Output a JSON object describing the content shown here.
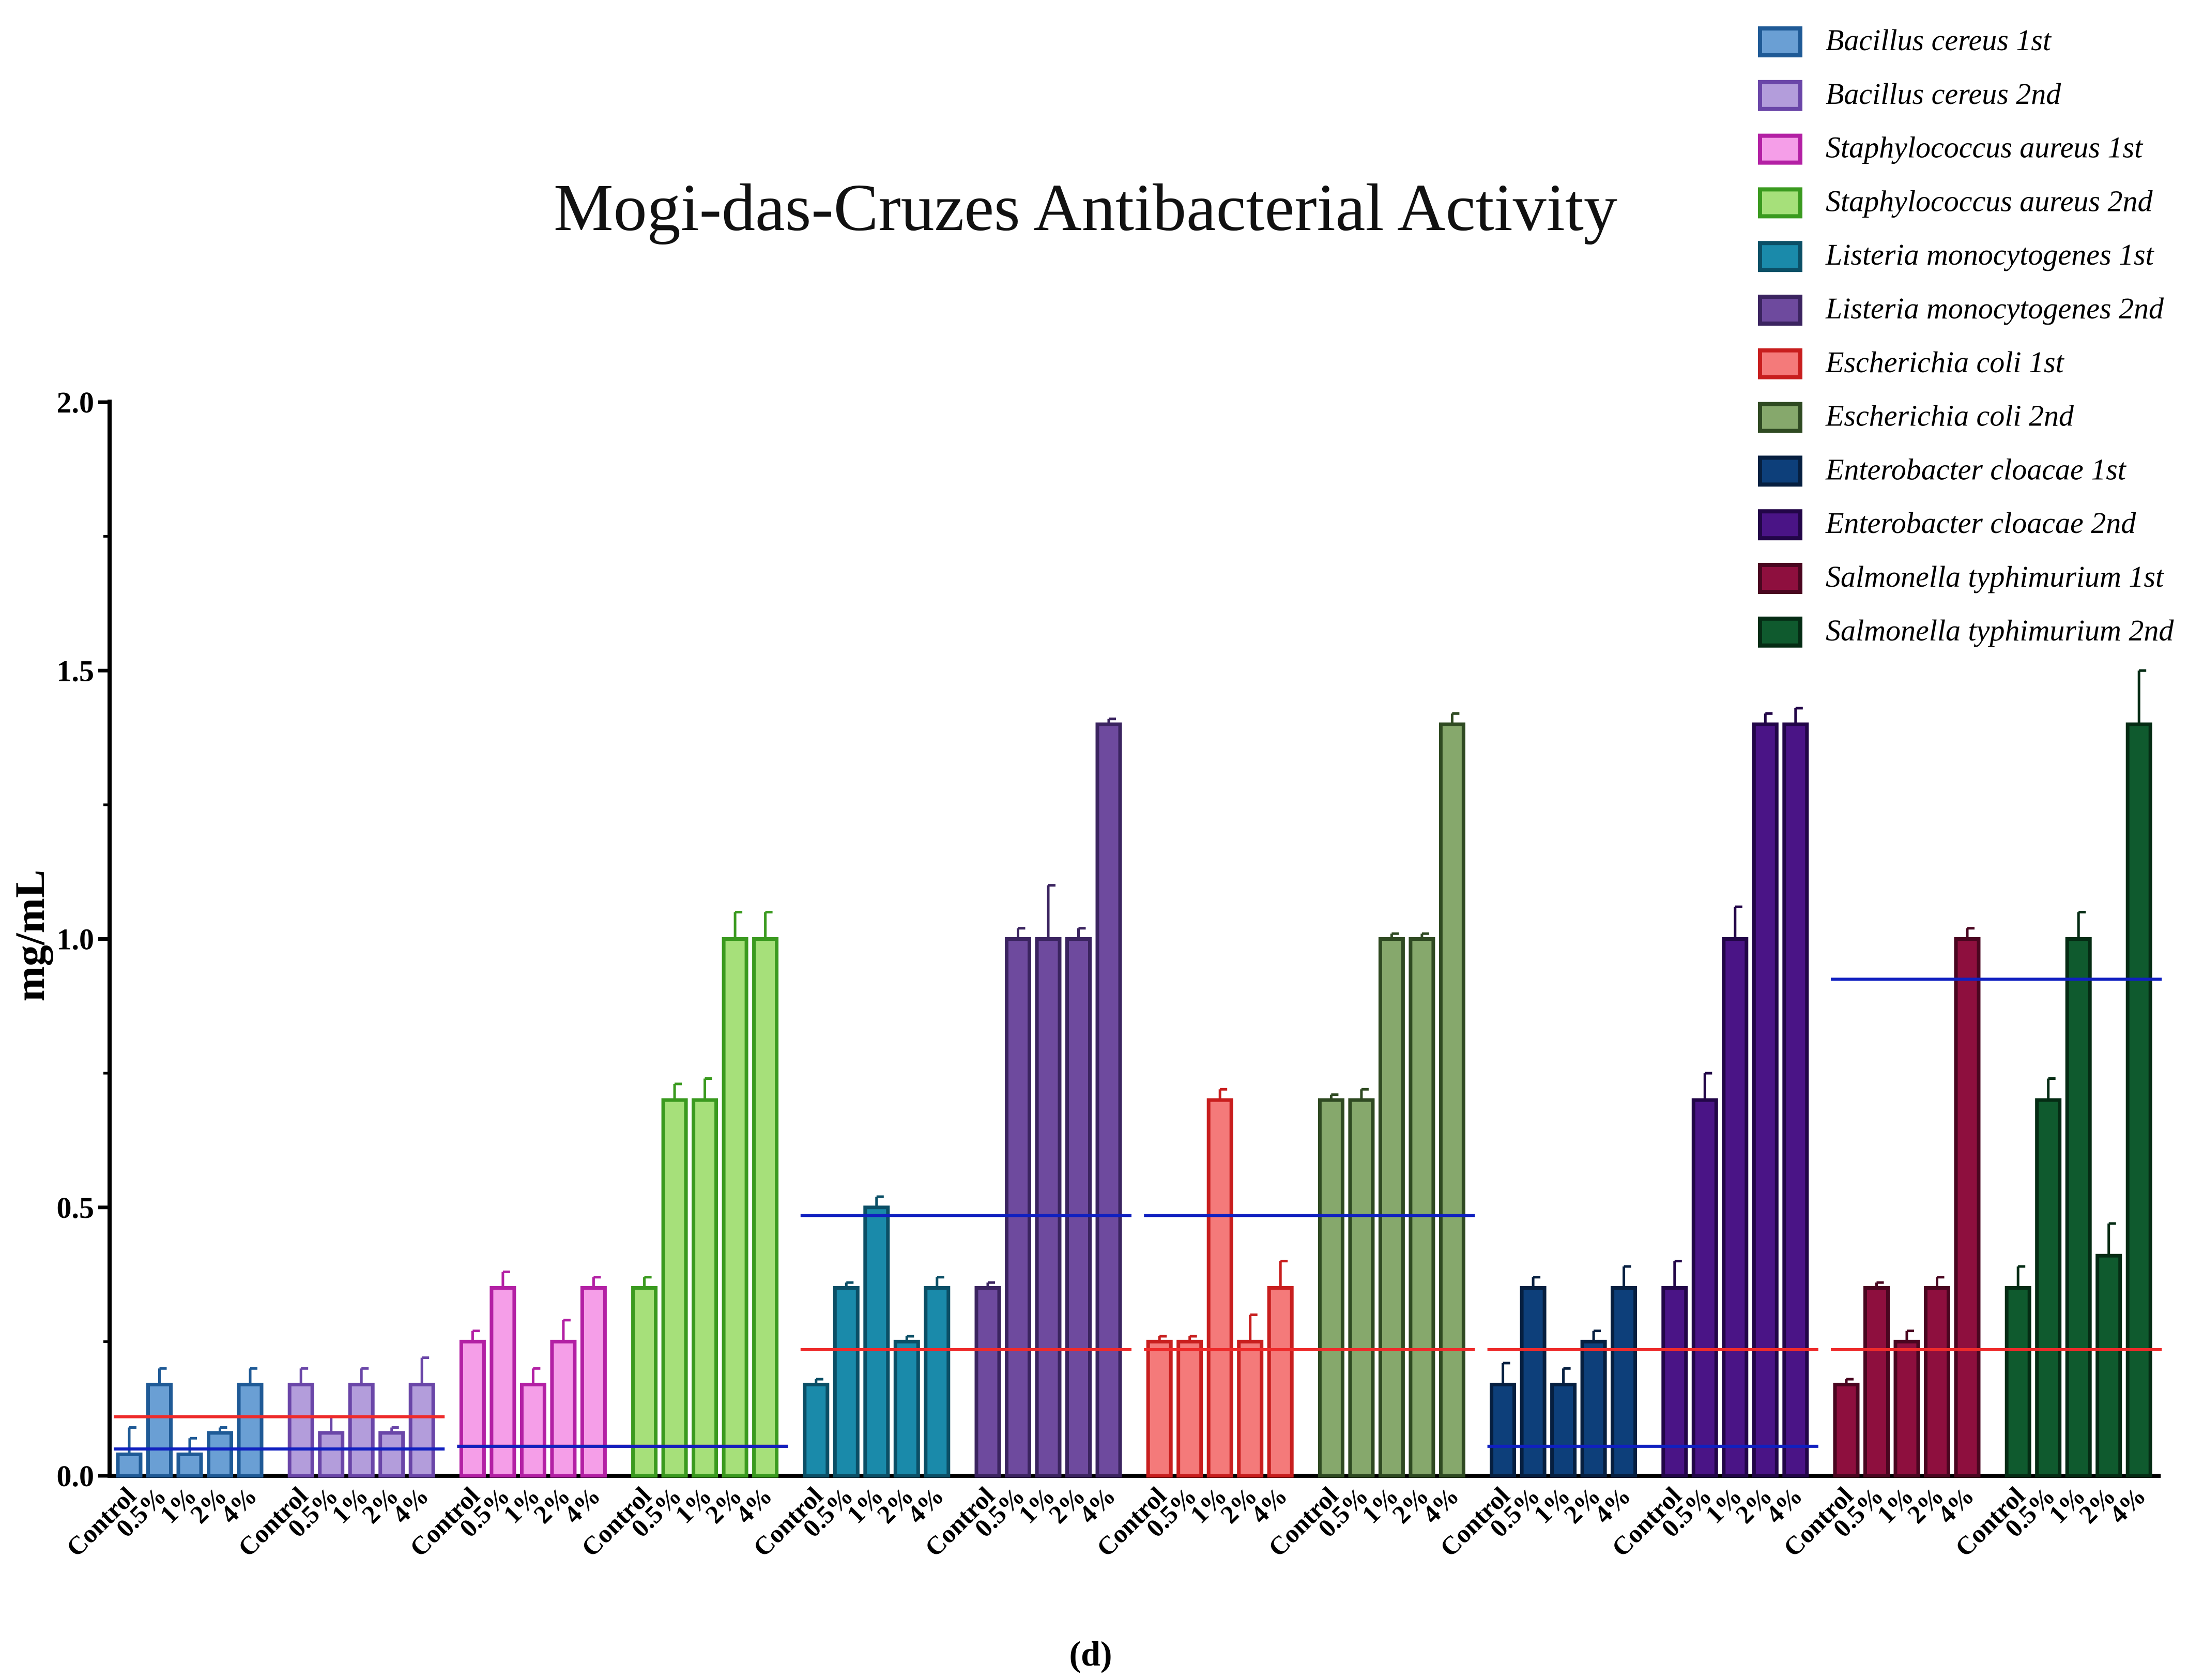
{
  "chart_data": {
    "type": "bar",
    "title": "Mogi-das-Cruzes Antibacterial Activity",
    "xlabel": "",
    "ylabel": "mg/mL",
    "caption": "(d)",
    "ylim": [
      0,
      2.0
    ],
    "yticks": [
      {
        "value": 0,
        "label": "0.0"
      },
      {
        "value": 0.5,
        "label": "0.5"
      },
      {
        "value": 1.0,
        "label": "1.0"
      },
      {
        "value": 1.5,
        "label": "1.5"
      },
      {
        "value": 2.0,
        "label": "2.0"
      }
    ],
    "grid": false,
    "legend_position": "top-right",
    "categories": [
      "Control",
      "0.5%",
      "1%",
      "2%",
      "4%"
    ],
    "series": [
      {
        "name": "Bacillus cereus 1st",
        "color": "#6a9fd4",
        "edge": "#1f5a96",
        "values": [
          0.04,
          0.17,
          0.04,
          0.08,
          0.17
        ],
        "errors": [
          0.05,
          0.03,
          0.03,
          0.01,
          0.03
        ]
      },
      {
        "name": "Bacillus cereus 2nd",
        "color": "#b39ddb",
        "edge": "#6a46a8",
        "values": [
          0.17,
          0.08,
          0.17,
          0.08,
          0.17
        ],
        "errors": [
          0.03,
          0.03,
          0.03,
          0.01,
          0.05
        ]
      },
      {
        "name": "Staphylococcus aureus 1st",
        "color": "#f59ee8",
        "edge": "#b320a4",
        "values": [
          0.25,
          0.35,
          0.17,
          0.25,
          0.35
        ],
        "errors": [
          0.02,
          0.03,
          0.03,
          0.04,
          0.02
        ]
      },
      {
        "name": "Staphylococcus aureus 2nd",
        "color": "#a6e07a",
        "edge": "#3a9a1f",
        "values": [
          0.35,
          0.7,
          0.7,
          1.0,
          1.0
        ],
        "errors": [
          0.02,
          0.03,
          0.04,
          0.05,
          0.05
        ]
      },
      {
        "name": "Listeria monocytogenes 1st",
        "color": "#1a8aaa",
        "edge": "#0b4f66",
        "values": [
          0.17,
          0.35,
          0.5,
          0.25,
          0.35
        ],
        "errors": [
          0.01,
          0.01,
          0.02,
          0.01,
          0.02
        ]
      },
      {
        "name": "Listeria monocytogenes 2nd",
        "color": "#6e4a9e",
        "edge": "#3b2460",
        "values": [
          0.35,
          1.0,
          1.0,
          1.0,
          1.4
        ],
        "errors": [
          0.01,
          0.02,
          0.1,
          0.02,
          0.01
        ]
      },
      {
        "name": "Escherichia coli 1st",
        "color": "#f47a7a",
        "edge": "#c81e1e",
        "values": [
          0.25,
          0.25,
          0.7,
          0.25,
          0.35
        ],
        "errors": [
          0.01,
          0.01,
          0.02,
          0.05,
          0.05
        ]
      },
      {
        "name": "Escherichia coli 2nd",
        "color": "#86a86c",
        "edge": "#2f4a22",
        "values": [
          0.7,
          0.7,
          1.0,
          1.0,
          1.4
        ],
        "errors": [
          0.01,
          0.02,
          0.01,
          0.01,
          0.02
        ]
      },
      {
        "name": "Enterobacter cloacae 1st",
        "color": "#0d3f7a",
        "edge": "#061f40",
        "values": [
          0.17,
          0.35,
          0.17,
          0.25,
          0.35
        ],
        "errors": [
          0.04,
          0.02,
          0.03,
          0.02,
          0.04
        ]
      },
      {
        "name": "Enterobacter cloacae 2nd",
        "color": "#4a1486",
        "edge": "#220648",
        "values": [
          0.35,
          0.7,
          1.0,
          1.4,
          1.4
        ],
        "errors": [
          0.05,
          0.05,
          0.06,
          0.02,
          0.03
        ]
      },
      {
        "name": "Salmonella typhimurium 1st",
        "color": "#8e0f3e",
        "edge": "#4a0620",
        "values": [
          0.17,
          0.35,
          0.25,
          0.35,
          1.0
        ],
        "errors": [
          0.01,
          0.01,
          0.02,
          0.02,
          0.02
        ]
      },
      {
        "name": "Salmonella typhimurium 2nd",
        "color": "#0f5a2e",
        "edge": "#052c14",
        "values": [
          0.35,
          0.7,
          1.0,
          0.41,
          1.4
        ],
        "errors": [
          0.04,
          0.04,
          0.05,
          0.06,
          0.1
        ]
      }
    ],
    "reference_lines": [
      {
        "species": "Bacillus cereus",
        "groups": [
          0,
          1
        ],
        "red": 0.11,
        "blue": 0.05
      },
      {
        "species": "Staphylococcus aureus",
        "groups": [
          2,
          3
        ],
        "red": 0.055,
        "blue": 0.055
      },
      {
        "species": "Listeria monocytogenes",
        "groups": [
          4,
          5
        ],
        "red": 0.235,
        "blue": 0.485
      },
      {
        "species": "Escherichia coli",
        "groups": [
          6,
          7
        ],
        "red": 0.235,
        "blue": 0.485
      },
      {
        "species": "Enterobacter cloacae",
        "groups": [
          8,
          9
        ],
        "red": 0.235,
        "blue": 0.055
      },
      {
        "species": "Salmonella typhimurium",
        "groups": [
          10,
          11
        ],
        "red": 0.235,
        "blue": 0.925
      }
    ]
  }
}
